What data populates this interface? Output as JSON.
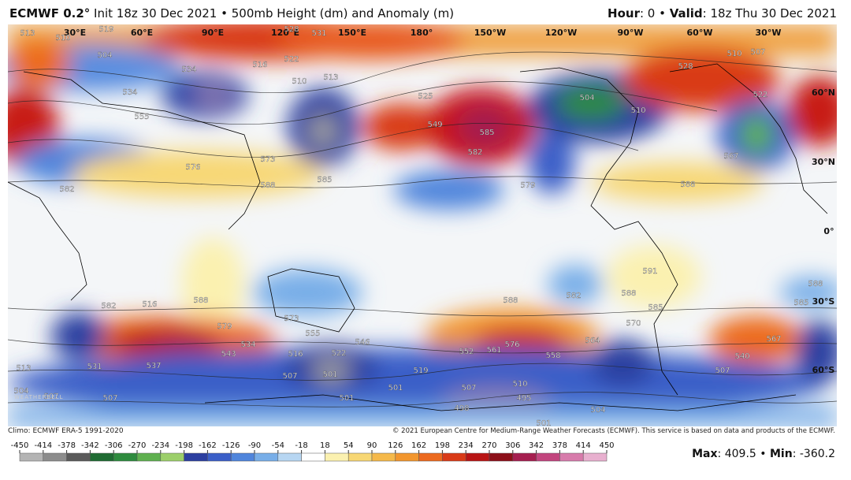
{
  "header": {
    "left": [
      {
        "text": "ECMWF 0.2°",
        "bold": true
      },
      {
        "text": " Init 18z 30 Dec 2021 • 500mb Height (dm) and Anomaly (m)",
        "bold": false
      }
    ],
    "right": [
      {
        "text": "Hour",
        "bold": true
      },
      {
        "text": ": 0 • ",
        "bold": false
      },
      {
        "text": "Valid",
        "bold": true
      },
      {
        "text": ": 18z Thu 30 Dec 2021",
        "bold": false
      }
    ]
  },
  "map": {
    "geo_labels": [
      "30°E",
      "60°E",
      "90°E",
      "120°E",
      "150°E",
      "180°",
      "150°W",
      "120°W",
      "90°W",
      "60°W",
      "30°W",
      "60°N",
      "30°N",
      "0°",
      "30°S",
      "60°S"
    ],
    "contour_labels": [
      513,
      510,
      519,
      504,
      534,
      534,
      555,
      576,
      573,
      588,
      582,
      585,
      516,
      522,
      513,
      510,
      531,
      528,
      525,
      549,
      585,
      582,
      579,
      504,
      510,
      528,
      522,
      567,
      510,
      507,
      588,
      591,
      588,
      585,
      585,
      588,
      582,
      588,
      576,
      561,
      558,
      564,
      570,
      552,
      567,
      540,
      507,
      504,
      495,
      498,
      501,
      501,
      510,
      507,
      519,
      522,
      546,
      516,
      507,
      501,
      537,
      531,
      513,
      504,
      507,
      507,
      516,
      582,
      588,
      579,
      573,
      555,
      534,
      543,
      501
    ],
    "logo": "WEATHERBELL"
  },
  "footer": {
    "climo": "Climo: ECMWF ERA-5 1991-2020",
    "copyright": "© 2021 European Centre for Medium-Range Weather Forecasts (ECMWF). This service is based on data and products of the ECMWF."
  },
  "colorbar": {
    "ticks": [
      -450,
      -414,
      -378,
      -342,
      -306,
      -270,
      -234,
      -198,
      -162,
      -126,
      -90,
      -54,
      -18,
      18,
      54,
      90,
      126,
      162,
      198,
      234,
      270,
      306,
      342,
      378,
      414,
      450
    ],
    "colors": [
      "#b4b4b4",
      "#8c8c8c",
      "#5a5a5a",
      "#1f6b32",
      "#2e8b3e",
      "#5fb04f",
      "#9ccf6a",
      "#2c3fa0",
      "#3b5fc8",
      "#4f85dc",
      "#78aee8",
      "#b7d6f2",
      "#ffffff",
      "#fbf1b0",
      "#f7d774",
      "#f5b94a",
      "#f2962e",
      "#ec6a1f",
      "#d93a17",
      "#b81414",
      "#8c0f19",
      "#a51e4f",
      "#c2457e",
      "#d77bab",
      "#e8b0cf"
    ]
  },
  "stats": {
    "max_label": "Max",
    "max": 409.5,
    "separator": "•",
    "min_label": "Min",
    "min": -360.2
  }
}
